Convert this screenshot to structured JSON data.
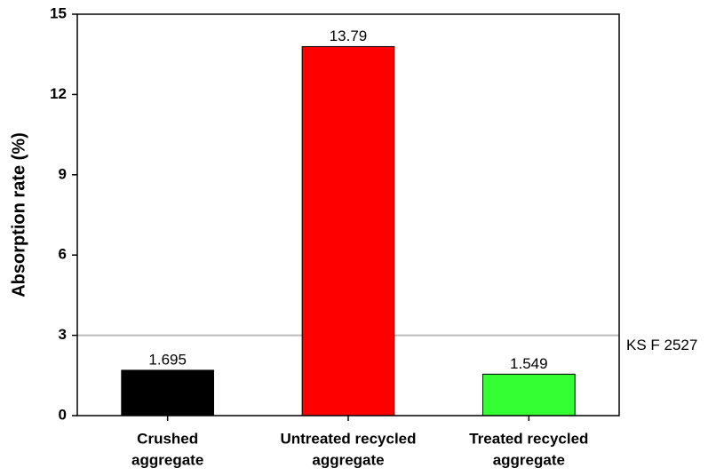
{
  "chart_data": {
    "type": "bar",
    "categories": [
      [
        "Crushed",
        "aggregate"
      ],
      [
        "Untreated recycled",
        "aggregate"
      ],
      [
        "Treated recycled",
        "aggregate"
      ]
    ],
    "values": [
      1.695,
      13.79,
      1.549
    ],
    "colors": [
      "#000000",
      "#ff0000",
      "#33ff33"
    ],
    "y_label": "Absorption rate (%)",
    "ylim": [
      0,
      15
    ],
    "yticks": [
      0,
      3,
      6,
      9,
      12,
      15
    ],
    "reference_line": {
      "value": 3,
      "label": "KS F 2527",
      "color": "#bbbbbb"
    }
  }
}
